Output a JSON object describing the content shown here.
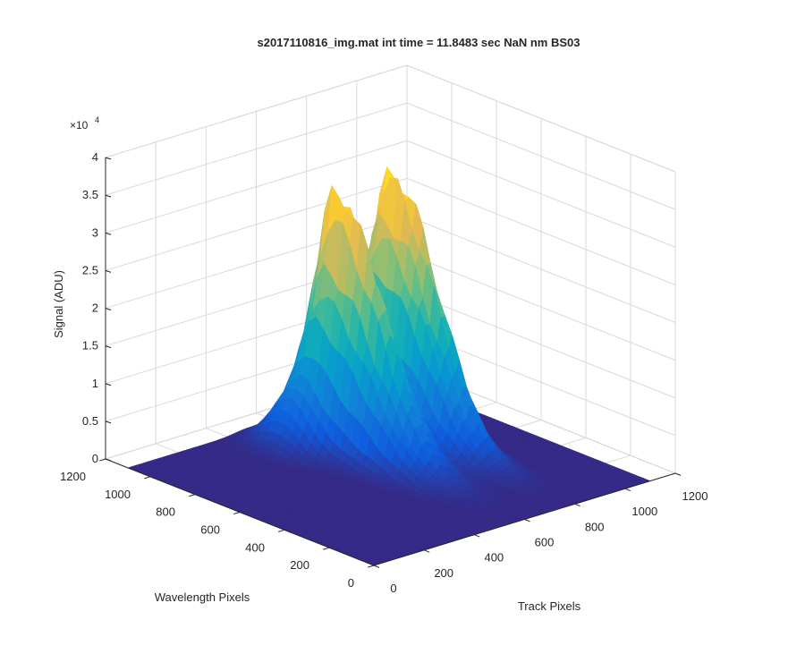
{
  "figure": {
    "background": "#ffffff",
    "axis_color": "#262626",
    "grid_color": "#d9d9d9",
    "floor_color": "#352a87"
  },
  "chart_data": {
    "type": "surface",
    "title": "s2017110816_img.mat int time = 11.8483 sec  NaN nm BS03",
    "xlabel": "Track Pixels",
    "ylabel": "Wavelength Pixels",
    "zlabel": "Signal (ADU)",
    "z_exponent_label": "×10",
    "z_exponent_power": "4",
    "xlim": [
      0,
      1200
    ],
    "ylim": [
      0,
      1200
    ],
    "zlim": [
      0,
      40000
    ],
    "x_ticks": [
      0,
      200,
      400,
      600,
      800,
      1000,
      1200
    ],
    "y_ticks": [
      0,
      200,
      400,
      600,
      800,
      1000,
      1200
    ],
    "z_ticks": [
      0,
      5000,
      10000,
      15000,
      20000,
      25000,
      30000,
      35000,
      40000
    ],
    "x_tick_labels": [
      "0",
      "200",
      "400",
      "600",
      "800",
      "1000",
      "1200"
    ],
    "y_tick_labels": [
      "0",
      "200",
      "400",
      "600",
      "800",
      "1000",
      "1200"
    ],
    "z_tick_labels": [
      "0",
      "0.5",
      "1",
      "1.5",
      "2",
      "2.5",
      "3",
      "3.5",
      "4"
    ],
    "grid": true,
    "colormap": "parula",
    "surface_extent": {
      "x": [
        0,
        1100
      ],
      "y": [
        0,
        1100
      ]
    },
    "peaks": [
      {
        "track_pixel": 590,
        "wavelength_pixel": 820,
        "max_signal": 32000
      },
      {
        "track_pixel": 790,
        "wavelength_pixel": 820,
        "max_signal": 33000
      }
    ]
  }
}
